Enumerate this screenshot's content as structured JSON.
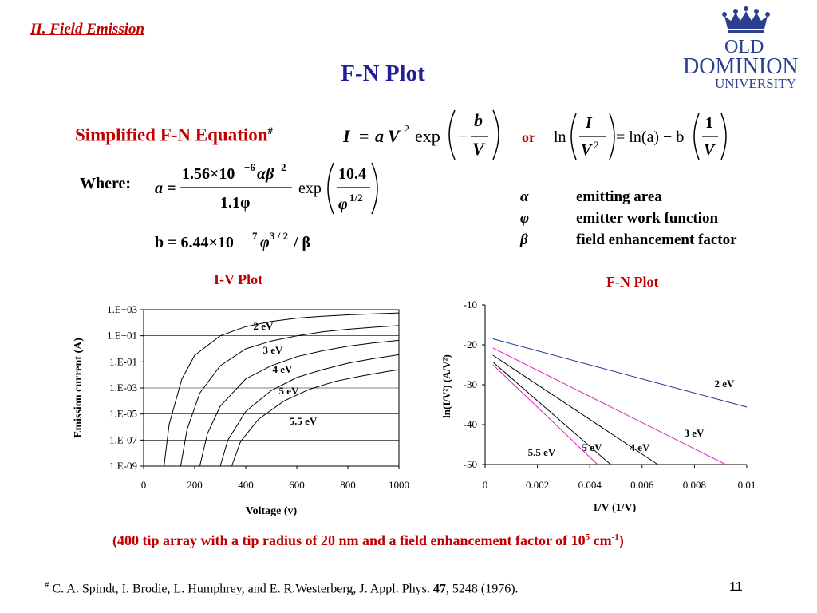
{
  "slide": {
    "section_title": "II. Field Emission",
    "title": "F-N Plot",
    "page_number": "11"
  },
  "logo": {
    "line1": "OLD",
    "line2": "DOMINION",
    "line3": "UNIVERSITY",
    "color": "#2a3f8f"
  },
  "equations": {
    "label": "Simplified F-N Equation",
    "label_mark": "#",
    "or_text": "or",
    "where_text": "Where:",
    "main_eq": {
      "lhs": "I",
      "eq": "=",
      "a": "a",
      "V": "V",
      "pow2": "2",
      "exp": "exp",
      "minus": "−",
      "num": "b",
      "den": "V"
    },
    "ln_eq": {
      "ln": "ln",
      "num": "I",
      "den": "V",
      "pow2": "2",
      "rhs": "= ln(a) − b",
      "num2": "1",
      "den2": "V"
    },
    "a_eq": {
      "lhs": "a =",
      "num": "1.56×10",
      "num_exp": "−6",
      "num_sym": "αβ",
      "num_sym_exp": "2",
      "den": "1.1φ",
      "exp": "exp",
      "exp_num": "10.4",
      "exp_den": "φ",
      "exp_den_pow": "1/2"
    },
    "b_eq": {
      "lhs": "b = 6.44×10",
      "exp": "7",
      "phi": "φ",
      "phi_pow": "3 / 2",
      "rest": "/ β"
    }
  },
  "legend": [
    {
      "symbol": "α",
      "text": "emitting area"
    },
    {
      "symbol": "φ",
      "text": "emitter work function"
    },
    {
      "symbol": "β",
      "text": "field enhancement factor"
    }
  ],
  "iv_chart": {
    "title": "I-V Plot",
    "y_tick_labels": [
      "1.E+03",
      "1.E+01",
      "1.E-01",
      "1.E-03",
      "1.E-05",
      "1.E-07",
      "1.E-09"
    ],
    "x_tick_labels": [
      "0",
      "200",
      "400",
      "600",
      "800",
      "1000"
    ],
    "xlabel": "Voltage (v)",
    "ylabel": "Emission current (A)",
    "curve_labels": [
      "2 eV",
      "3 eV",
      "4 eV",
      "5 eV",
      "5.5 eV"
    ]
  },
  "fn_chart": {
    "title": "F-N Plot",
    "y_tick_labels": [
      "-10",
      "-20",
      "-30",
      "-40",
      "-50"
    ],
    "x_tick_labels": [
      "0",
      "0.002",
      "0.004",
      "0.006",
      "0.008",
      "0.01"
    ],
    "xlabel": "1/V (1/V)",
    "ylabel": "ln(I/V²) (A/V²)",
    "curve_labels": [
      "2 eV",
      "3 eV",
      "4 eV",
      "5 eV",
      "5.5 eV"
    ]
  },
  "chart_data": [
    {
      "type": "line",
      "title": "I-V Plot",
      "xlabel": "Voltage (v)",
      "ylabel": "Emission current (A)",
      "xlim": [
        0,
        1000
      ],
      "ylim": [
        -9,
        3
      ],
      "y_scale": "log10",
      "series": [
        {
          "name": "2 eV",
          "x": [
            80,
            100,
            150,
            200,
            300,
            400,
            500,
            600,
            700,
            800,
            900,
            1000
          ],
          "y": [
            -9,
            -5.8,
            -2.3,
            -0.5,
            1.0,
            1.7,
            2.1,
            2.35,
            2.5,
            2.6,
            2.68,
            2.75
          ]
        },
        {
          "name": "3 eV",
          "x": [
            145,
            170,
            220,
            300,
            400,
            500,
            600,
            700,
            800,
            900,
            1000
          ],
          "y": [
            -9,
            -6.2,
            -3.4,
            -1.3,
            0.0,
            0.6,
            1.0,
            1.3,
            1.5,
            1.65,
            1.78
          ]
        },
        {
          "name": "4 eV",
          "x": [
            220,
            250,
            300,
            400,
            500,
            600,
            700,
            800,
            900,
            1000
          ],
          "y": [
            -9,
            -6.5,
            -4.4,
            -2.3,
            -1.3,
            -0.6,
            -0.15,
            0.2,
            0.45,
            0.65
          ]
        },
        {
          "name": "5 eV",
          "x": [
            300,
            330,
            400,
            500,
            600,
            700,
            800,
            900,
            1000
          ],
          "y": [
            -9,
            -7.0,
            -4.8,
            -3.2,
            -2.2,
            -1.6,
            -1.1,
            -0.75,
            -0.45
          ]
        },
        {
          "name": "5.5 eV",
          "x": [
            345,
            380,
            450,
            550,
            650,
            750,
            850,
            950,
            1000
          ],
          "y": [
            -9,
            -7.1,
            -5.4,
            -4.0,
            -3.1,
            -2.5,
            -2.1,
            -1.75,
            -1.6
          ]
        }
      ]
    },
    {
      "type": "line",
      "title": "F-N Plot",
      "xlabel": "1/V (1/V)",
      "ylabel": "ln(I/V²) (A/V²)",
      "xlim": [
        0,
        0.01
      ],
      "ylim": [
        -50,
        -10
      ],
      "series": [
        {
          "name": "2 eV",
          "color": "#1f2f99",
          "x": [
            0.0003,
            0.01
          ],
          "y": [
            -18.5,
            -35.6
          ]
        },
        {
          "name": "3 eV",
          "color": "#e020c0",
          "x": [
            0.0003,
            0.0092
          ],
          "y": [
            -20.8,
            -50
          ]
        },
        {
          "name": "4 eV",
          "color": "#000000",
          "x": [
            0.0003,
            0.0066
          ],
          "y": [
            -22.6,
            -50
          ]
        },
        {
          "name": "5 eV",
          "color": "#000000",
          "x": [
            0.0003,
            0.0048
          ],
          "y": [
            -24.3,
            -50
          ]
        },
        {
          "name": "5.5 eV",
          "color": "#e020c0",
          "x": [
            0.0003,
            0.0043
          ],
          "y": [
            -25.0,
            -50
          ]
        }
      ]
    }
  ],
  "caption": {
    "before": "(400 tip array with a tip radius of 20 nm and a field enhancement factor of 10",
    "sup1": "5",
    "mid": " cm",
    "sup2": "-1",
    "after": ")"
  },
  "footnote": {
    "mark": "#",
    "text_before": " C. A. Spindt, I. Brodie, L. Humphrey, and E. R.Westerberg, J. Appl. Phys. ",
    "volume": "47",
    "text_after": ", 5248 (1976)."
  }
}
